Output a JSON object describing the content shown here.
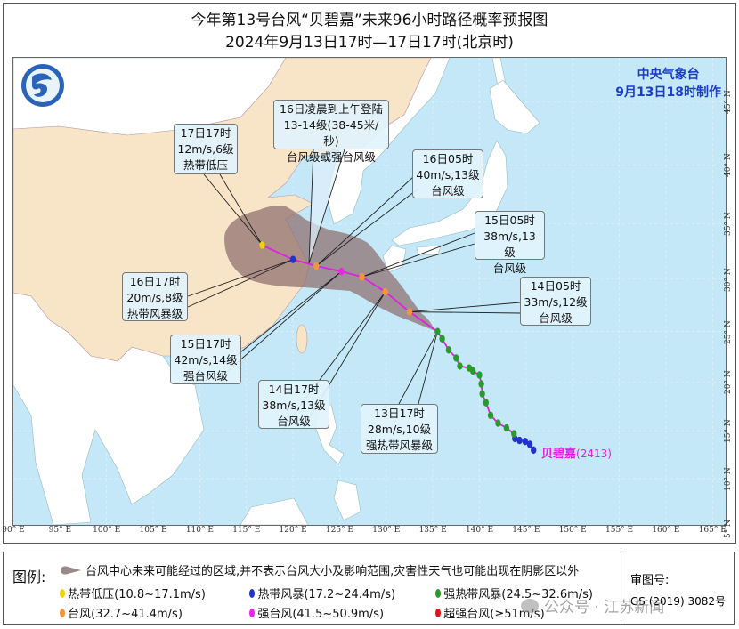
{
  "header": {
    "title": "今年第13号台风“贝碧嘉”未来96小时路径概率预报图",
    "subtitle": "2024年9月13日17时—17日17时(北京时)"
  },
  "agency": {
    "name": "中央气象台",
    "issued": "9月13日18时制作"
  },
  "typhoon": {
    "name": "贝碧嘉",
    "code": "(2413)"
  },
  "colors": {
    "sea": "#c4e8f8",
    "china_land": "#f8e4c6",
    "other_land": "#ffffff",
    "track": "#e020e0",
    "cone": "#8e6e6e",
    "td": "#f2d200",
    "ts": "#2233cc",
    "sts": "#2a9a2a",
    "ty": "#f5943a",
    "sty": "#ee22ee",
    "superty": "#e81010"
  },
  "axes": {
    "lon_ticks": [
      "90° E",
      "95° E",
      "100° E",
      "105° E",
      "110° E",
      "115° E",
      "120° E",
      "125° E",
      "130° E",
      "135° E",
      "140° E",
      "145° E",
      "150° E",
      "155° E",
      "160° E",
      "165° E"
    ],
    "lon_values": [
      90,
      95,
      100,
      105,
      110,
      115,
      120,
      125,
      130,
      135,
      140,
      145,
      150,
      155,
      160,
      165
    ],
    "lat_ticks": [
      "45° N",
      "40° N",
      "35° N",
      "30° N",
      "25° N",
      "20° N",
      "15° N",
      "10° N",
      "5° N"
    ],
    "lat_values": [
      45,
      40,
      35,
      30,
      25,
      20,
      15,
      10,
      5
    ]
  },
  "track": {
    "observed": [
      {
        "lon": 145.8,
        "lat": 13.0,
        "category": "ts"
      },
      {
        "lon": 145.4,
        "lat": 13.6,
        "category": "ts"
      },
      {
        "lon": 144.9,
        "lat": 13.9,
        "category": "ts"
      },
      {
        "lon": 144.3,
        "lat": 14.0,
        "category": "ts"
      },
      {
        "lon": 143.8,
        "lat": 14.2,
        "category": "ts"
      },
      {
        "lon": 143.7,
        "lat": 14.7,
        "category": "sts"
      },
      {
        "lon": 142.9,
        "lat": 15.3,
        "category": "sts"
      },
      {
        "lon": 142.0,
        "lat": 15.8,
        "category": "sts"
      },
      {
        "lon": 141.2,
        "lat": 16.6,
        "category": "sts"
      },
      {
        "lon": 140.7,
        "lat": 17.9,
        "category": "sts"
      },
      {
        "lon": 140.3,
        "lat": 18.8,
        "category": "sts"
      },
      {
        "lon": 140.2,
        "lat": 19.8,
        "category": "sts"
      },
      {
        "lon": 140.0,
        "lat": 20.7,
        "category": "sts"
      },
      {
        "lon": 139.3,
        "lat": 21.1,
        "category": "sts"
      },
      {
        "lon": 138.9,
        "lat": 21.4,
        "category": "sts"
      },
      {
        "lon": 137.9,
        "lat": 21.6,
        "category": "sts"
      },
      {
        "lon": 137.5,
        "lat": 22.4,
        "category": "sts"
      },
      {
        "lon": 136.7,
        "lat": 23.2,
        "category": "sts"
      },
      {
        "lon": 136.0,
        "lat": 24.3,
        "category": "sts"
      }
    ],
    "forecast": [
      {
        "time": "13日17时",
        "lon": 135.5,
        "lat": 25.0,
        "category": "sts"
      },
      {
        "time": "14日05时",
        "lon": 132.5,
        "lat": 26.9,
        "category": "ty"
      },
      {
        "time": "14日17时",
        "lon": 129.9,
        "lat": 28.8,
        "category": "ty"
      },
      {
        "time": "15日05时",
        "lon": 127.4,
        "lat": 30.2,
        "category": "ty"
      },
      {
        "time": "15日17时",
        "lon": 125.2,
        "lat": 30.7,
        "category": "sty"
      },
      {
        "time": "16日05时",
        "lon": 122.5,
        "lat": 31.2,
        "category": "ty"
      },
      {
        "time": "16日17时",
        "lon": 120.0,
        "lat": 31.8,
        "category": "ts"
      },
      {
        "time": "17日17时",
        "lon": 116.7,
        "lat": 33.1,
        "category": "td"
      }
    ]
  },
  "labels": {
    "l1317": [
      "13日17时",
      "28m/s,10级",
      "强热带风暴级"
    ],
    "l1405": [
      "14日05时",
      "33m/s,12级",
      "台风级"
    ],
    "l1417": [
      "14日17时",
      "38m/s,13级",
      "台风级"
    ],
    "l1505": [
      "15日05时",
      "38m/s,13级",
      "台风级"
    ],
    "l1517": [
      "15日17时",
      "42m/s,14级",
      "强台风级"
    ],
    "l1605": [
      "16日05时",
      "40m/s,13级",
      "台风级"
    ],
    "l1617": [
      "16日17时",
      "20m/s,8级",
      "热带风暴级"
    ],
    "l1717": [
      "17日17时",
      "12m/s,6级",
      "热带低压"
    ],
    "landfall": [
      "16日凌晨到上午登陆",
      "13-14级(38-45米/秒)",
      "台风级或强台风级"
    ]
  },
  "legend": {
    "title": "图例:",
    "cone_text": "台风中心未来可能经过的区域,并不表示台风大小及影响范围,灾害性天气也可能出现在阴影区以外",
    "items": [
      {
        "key": "td",
        "label": "热带低压(10.8~17.1m/s)"
      },
      {
        "key": "ts",
        "label": "热带风暴(17.2~24.4m/s)"
      },
      {
        "key": "sts",
        "label": "强热带风暴(24.5~32.6m/s)"
      },
      {
        "key": "ty",
        "label": "台风(32.7~41.4m/s)"
      },
      {
        "key": "sty",
        "label": "强台风(41.5~50.9m/s)"
      },
      {
        "key": "superty",
        "label": "超强台风(≥51m/s)"
      }
    ],
    "review_label": "审图号:",
    "review_number": "GS (2019) 3082号"
  },
  "watermark": "公众号 · 江苏新闻"
}
